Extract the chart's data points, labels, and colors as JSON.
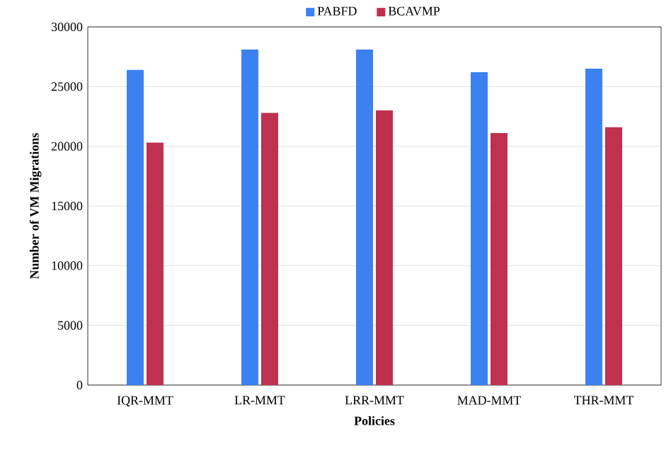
{
  "chart_data": {
    "type": "bar",
    "xlabel": "Policies",
    "ylabel": "Number of VM Migrations",
    "categories": [
      "IQR-MMT",
      "LR-MMT",
      "LRR-MMT",
      "MAD-MMT",
      "THR-MMT"
    ],
    "series": [
      {
        "name": "PABFD",
        "color": "#3b82f0",
        "values": [
          26400,
          28100,
          28100,
          26200,
          26500
        ]
      },
      {
        "name": "BCAVMP",
        "color": "#c0304f",
        "values": [
          20300,
          22800,
          23000,
          21100,
          21600
        ]
      }
    ],
    "ylim": [
      0,
      30000
    ],
    "yticks": [
      0,
      5000,
      10000,
      15000,
      20000,
      25000,
      30000
    ],
    "grid": "y",
    "legend": "top"
  }
}
